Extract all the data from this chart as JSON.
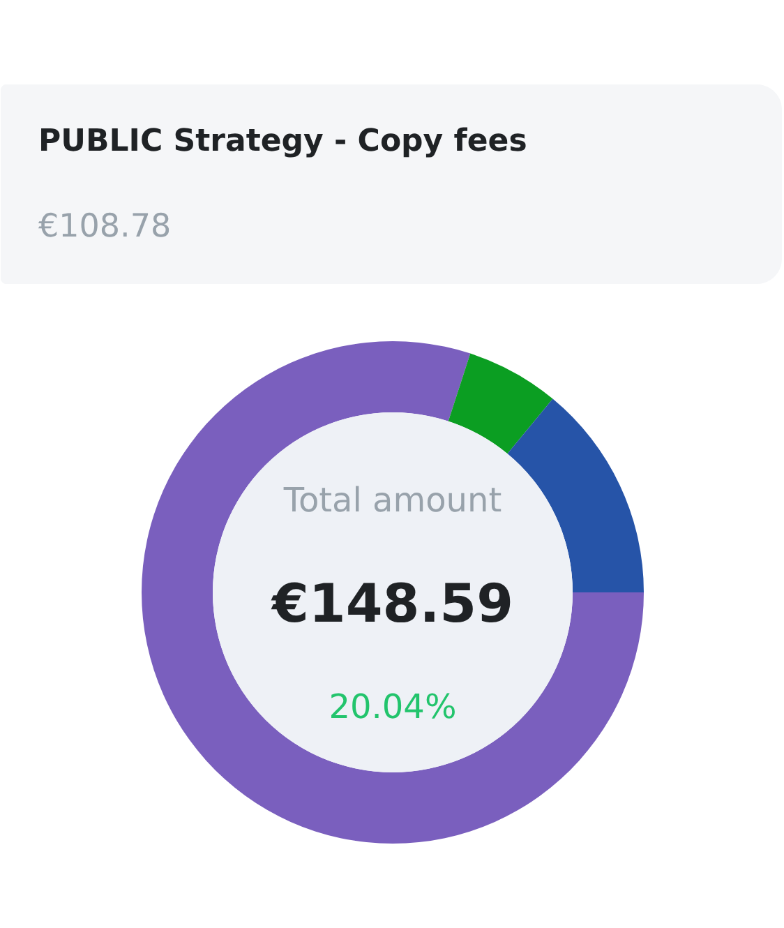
{
  "chart_data": [
    {
      "type": "other",
      "title": "PUBLIC Strategy - Copy fees",
      "annotations": [
        "€108.78"
      ]
    },
    {
      "type": "donut",
      "categories": [
        null,
        null,
        null
      ],
      "values": [
        80,
        6,
        14
      ],
      "colors": [
        "#7a5fbe",
        "#0b9e22",
        "#2654a8"
      ],
      "annotations": [
        "Total amount",
        "€148.59",
        "20.04%"
      ]
    }
  ]
}
